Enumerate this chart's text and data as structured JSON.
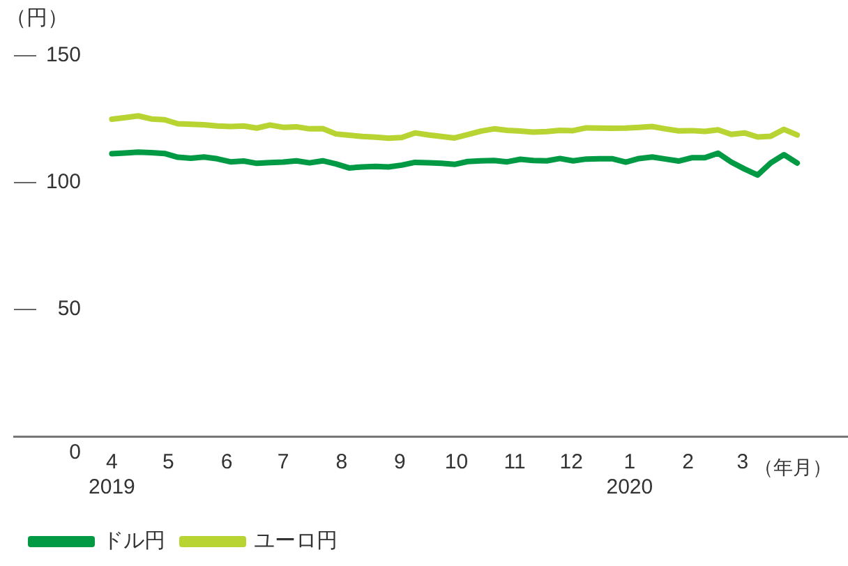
{
  "chart_data": {
    "type": "line",
    "ylabel": "（円）",
    "xlabel": "（年月）",
    "x": [
      "2019-04-01",
      "2019-04-08",
      "2019-04-15",
      "2019-04-22",
      "2019-04-29",
      "2019-05-06",
      "2019-05-13",
      "2019-05-20",
      "2019-05-27",
      "2019-06-03",
      "2019-06-10",
      "2019-06-17",
      "2019-06-24",
      "2019-07-01",
      "2019-07-08",
      "2019-07-15",
      "2019-07-22",
      "2019-07-29",
      "2019-08-05",
      "2019-08-12",
      "2019-08-19",
      "2019-08-26",
      "2019-09-02",
      "2019-09-09",
      "2019-09-16",
      "2019-09-23",
      "2019-09-30",
      "2019-10-07",
      "2019-10-14",
      "2019-10-21",
      "2019-10-28",
      "2019-11-04",
      "2019-11-11",
      "2019-11-18",
      "2019-11-25",
      "2019-12-02",
      "2019-12-09",
      "2019-12-16",
      "2019-12-23",
      "2019-12-30",
      "2020-01-06",
      "2020-01-13",
      "2020-01-20",
      "2020-01-27",
      "2020-02-03",
      "2020-02-10",
      "2020-02-17",
      "2020-02-24",
      "2020-03-02",
      "2020-03-09",
      "2020-03-16",
      "2020-03-23",
      "2020-03-30"
    ],
    "series": [
      {
        "name": "ドル円",
        "color": "#009a44",
        "values": [
          111.4,
          111.7,
          112.0,
          111.8,
          111.5,
          110.0,
          109.6,
          110.1,
          109.4,
          108.2,
          108.5,
          107.6,
          107.9,
          108.1,
          108.6,
          107.8,
          108.6,
          107.4,
          105.8,
          106.2,
          106.4,
          106.2,
          106.9,
          108.0,
          107.8,
          107.6,
          107.2,
          108.3,
          108.6,
          108.7,
          108.2,
          109.2,
          108.7,
          108.6,
          109.5,
          108.6,
          109.3,
          109.4,
          109.4,
          108.1,
          109.5,
          110.1,
          109.3,
          108.5,
          109.8,
          109.8,
          111.6,
          108.1,
          105.4,
          103.0,
          107.8,
          111.0,
          107.7
        ]
      },
      {
        "name": "ユーロ円",
        "color": "#b7d433",
        "values": [
          125.0,
          125.6,
          126.3,
          125.1,
          124.8,
          123.2,
          123.0,
          122.8,
          122.3,
          122.1,
          122.3,
          121.5,
          122.7,
          121.8,
          122.0,
          121.2,
          121.3,
          119.2,
          118.7,
          118.2,
          117.9,
          117.5,
          117.8,
          119.6,
          118.8,
          118.2,
          117.6,
          118.9,
          120.3,
          121.2,
          120.6,
          120.3,
          119.9,
          120.1,
          120.6,
          120.5,
          121.6,
          121.5,
          121.4,
          121.5,
          121.8,
          122.1,
          121.2,
          120.4,
          120.5,
          120.2,
          120.8,
          119.0,
          119.6,
          118.0,
          118.3,
          121.0,
          118.8
        ]
      }
    ],
    "xlim": [
      "2019-02-08",
      "2020-04-26"
    ],
    "xticks": [
      {
        "value": "2019-04-01",
        "label": "4\n2019"
      },
      {
        "value": "2019-05-01",
        "label": "5"
      },
      {
        "value": "2019-06-01",
        "label": "6"
      },
      {
        "value": "2019-07-01",
        "label": "7"
      },
      {
        "value": "2019-08-01",
        "label": "8"
      },
      {
        "value": "2019-09-01",
        "label": "9"
      },
      {
        "value": "2019-10-01",
        "label": "10"
      },
      {
        "value": "2019-11-01",
        "label": "11"
      },
      {
        "value": "2019-12-01",
        "label": "12"
      },
      {
        "value": "2020-01-01",
        "label": "1\n2020"
      },
      {
        "value": "2020-02-01",
        "label": "2"
      },
      {
        "value": "2020-03-01",
        "label": "3"
      }
    ],
    "ylim": [
      0,
      150
    ],
    "yticks": [
      0,
      50,
      100,
      150
    ],
    "grid": false,
    "legend": "bottom left",
    "marker": "none",
    "line_style": "solid"
  }
}
